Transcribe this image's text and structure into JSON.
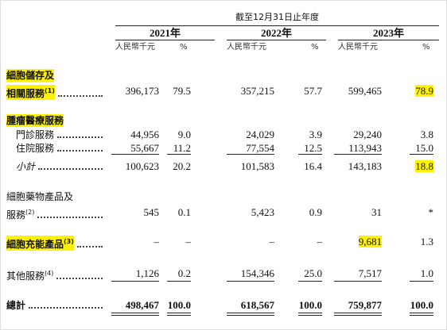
{
  "header": {
    "period": "截至12月31日止年度",
    "years": [
      "2021年",
      "2022年",
      "2023年"
    ],
    "unit": "人民幣千元",
    "percent": "%"
  },
  "rows": [
    {
      "label": [
        "細胞儲存及",
        "相關服務"
      ],
      "note": "(1)",
      "highlighted": true,
      "values": [
        "396,173",
        "79.5",
        "357,215",
        "57.7",
        "599,465",
        "78.9"
      ],
      "highlighted_values": [
        5
      ]
    },
    {
      "label": [
        "腫瘤醫療服務"
      ],
      "highlighted": true
    },
    {
      "label": [
        "門診服務"
      ],
      "values": [
        "44,956",
        "9.0",
        "24,029",
        "3.9",
        "29,240",
        "3.8"
      ]
    },
    {
      "label": [
        "住院服務"
      ],
      "values": [
        "55,667",
        "11.2",
        "77,554",
        "12.5",
        "113,943",
        "15.0"
      ]
    },
    {
      "label": [
        "小計"
      ],
      "values": [
        "100,623",
        "20.2",
        "101,583",
        "16.4",
        "143,183",
        "18.8"
      ],
      "highlighted_values": [
        5
      ]
    },
    {
      "label": [
        "細胞藥物產品及",
        "服務"
      ],
      "note": "(2)",
      "values": [
        "545",
        "0.1",
        "5,423",
        "0.9",
        "31",
        "*"
      ]
    },
    {
      "label": [
        "細胞充能產品"
      ],
      "note": "(3)",
      "highlighted": true,
      "values": [
        "–",
        "–",
        "–",
        "–",
        "9,681",
        "1.3"
      ],
      "highlighted_values": [
        4
      ]
    },
    {
      "label": [
        "其他服務"
      ],
      "note": "(4)",
      "values": [
        "1,126",
        "0.2",
        "154,346",
        "25.0",
        "7,517",
        "1.0"
      ]
    },
    {
      "label": [
        "總計"
      ],
      "values": [
        "498,467",
        "100.0",
        "618,567",
        "100.0",
        "759,877",
        "100.0"
      ]
    }
  ]
}
